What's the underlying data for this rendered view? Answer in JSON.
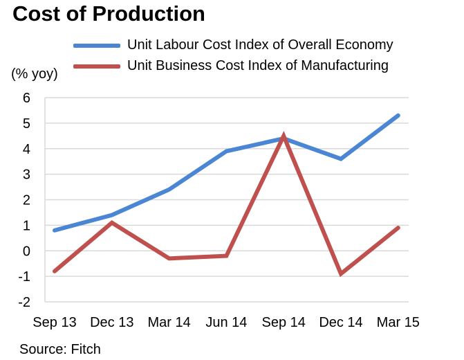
{
  "chart_data": {
    "type": "line",
    "title": "Cost of Production",
    "ylabel": "(% yoy)",
    "xlabel": "",
    "categories": [
      "Sep 13",
      "Dec 13",
      "Mar 14",
      "Jun 14",
      "Sep 14",
      "Dec 14",
      "Mar 15"
    ],
    "ylim": [
      -2,
      6
    ],
    "yticks": [
      -2,
      -1,
      0,
      1,
      2,
      3,
      4,
      5,
      6
    ],
    "grid": true,
    "legend_position": "top",
    "series": [
      {
        "name": "Unit Labour Cost Index of Overall Economy",
        "color": "#4a86d4",
        "values": [
          0.8,
          1.4,
          2.4,
          3.9,
          4.4,
          3.6,
          5.3
        ]
      },
      {
        "name": "Unit Business Cost Index of Manufacturing",
        "color": "#c0504d",
        "values": [
          -0.8,
          1.1,
          -0.3,
          -0.2,
          4.5,
          -0.9,
          0.9
        ]
      }
    ],
    "source": "Source: Fitch"
  }
}
